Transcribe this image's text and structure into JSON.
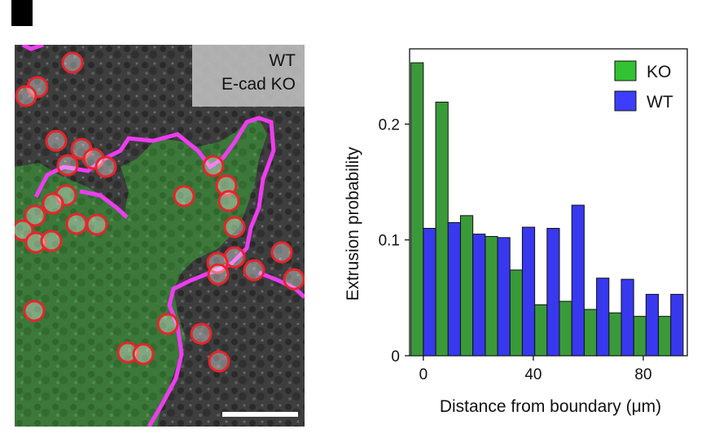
{
  "panel": {
    "label": ""
  },
  "micrograph": {
    "legend": [
      {
        "text": "WT",
        "color": "#111111"
      },
      {
        "text": "E-cad KO",
        "color": "#39d23a"
      }
    ],
    "boundary_color": "#ee3cf0",
    "circle_color": "#e8242a",
    "has_scale_bar": true
  },
  "chart_data": {
    "type": "bar",
    "xlabel": "Distance from boundary (μm)",
    "ylabel": "Extrusion probability",
    "x_ticks": [
      0,
      40,
      80
    ],
    "y_ticks": [
      0,
      0.1,
      0.2
    ],
    "y_tick_labels": [
      "0",
      "0.1",
      "0.2"
    ],
    "xlim": [
      -5,
      96
    ],
    "ylim": [
      0,
      0.265
    ],
    "bin_width": 9,
    "legend_position": "top-right",
    "series": [
      {
        "name": "KO",
        "color": "#3a9a3a",
        "x": [
          0,
          9,
          18,
          27,
          36,
          45,
          54,
          63,
          72,
          81,
          90
        ],
        "values": [
          0.253,
          0.219,
          0.121,
          0.103,
          0.074,
          0.044,
          0.047,
          0.04,
          0.037,
          0.034,
          0.034
        ]
      },
      {
        "name": "WT",
        "color": "#3838ee",
        "x": [
          0,
          9,
          18,
          27,
          36,
          45,
          54,
          63,
          72,
          81,
          90
        ],
        "values": [
          0.11,
          0.115,
          0.105,
          0.102,
          0.111,
          0.11,
          0.13,
          0.067,
          0.066,
          0.053,
          0.053
        ]
      }
    ]
  }
}
